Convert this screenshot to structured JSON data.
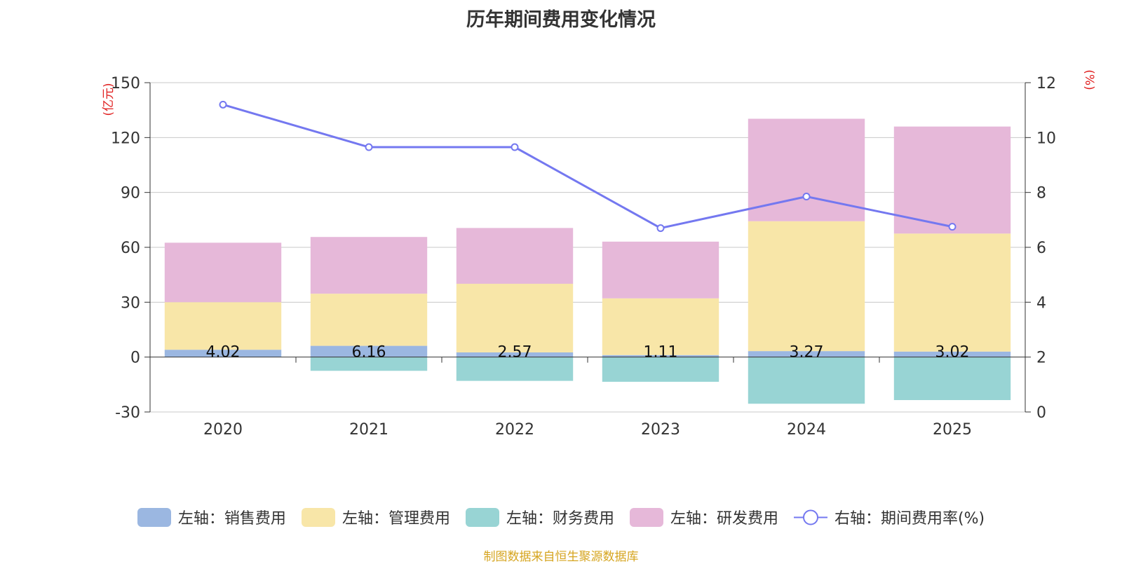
{
  "chart_data": {
    "type": "bar",
    "title": "历年期间费用变化情况",
    "categories": [
      "2020",
      "2021",
      "2022",
      "2023",
      "2024",
      "2025"
    ],
    "left_axis": {
      "label": "(亿元)",
      "min": -30,
      "max": 150,
      "ticks": [
        -30,
        0,
        30,
        60,
        90,
        120,
        150
      ]
    },
    "right_axis": {
      "label": "(%)",
      "min": 0,
      "max": 12,
      "ticks": [
        0,
        2,
        4,
        6,
        8,
        10,
        12
      ]
    },
    "grid": true,
    "stacked": true,
    "series": [
      {
        "name": "左轴：销售费用",
        "axis": "left",
        "color": "#9bb7e1",
        "values": [
          4.02,
          6.16,
          2.57,
          1.11,
          3.27,
          3.02
        ]
      },
      {
        "name": "左轴：管理费用",
        "axis": "left",
        "color": "#f8e6a8",
        "values": [
          26.0,
          28.5,
          37.5,
          31.0,
          71.0,
          64.5
        ]
      },
      {
        "name": "左轴：财务费用",
        "axis": "left",
        "color": "#98d4d4",
        "values": [
          0,
          -7.5,
          -13.0,
          -13.5,
          -25.5,
          -23.5
        ]
      },
      {
        "name": "左轴：研发费用",
        "axis": "left",
        "color": "#e6b8d9",
        "values": [
          32.5,
          31.0,
          30.5,
          31.0,
          56.0,
          58.5
        ]
      },
      {
        "name": "右轴：期间费用率(%)",
        "axis": "right",
        "type": "line",
        "color": "#7478f0",
        "values": [
          11.2,
          9.65,
          9.65,
          6.7,
          7.85,
          6.75
        ]
      }
    ],
    "data_labels": [
      "4.02",
      "6.16",
      "2.57",
      "1.11",
      "3.27",
      "3.02"
    ],
    "legend_position": "bottom"
  },
  "footer": "制图数据来自恒生聚源数据库"
}
